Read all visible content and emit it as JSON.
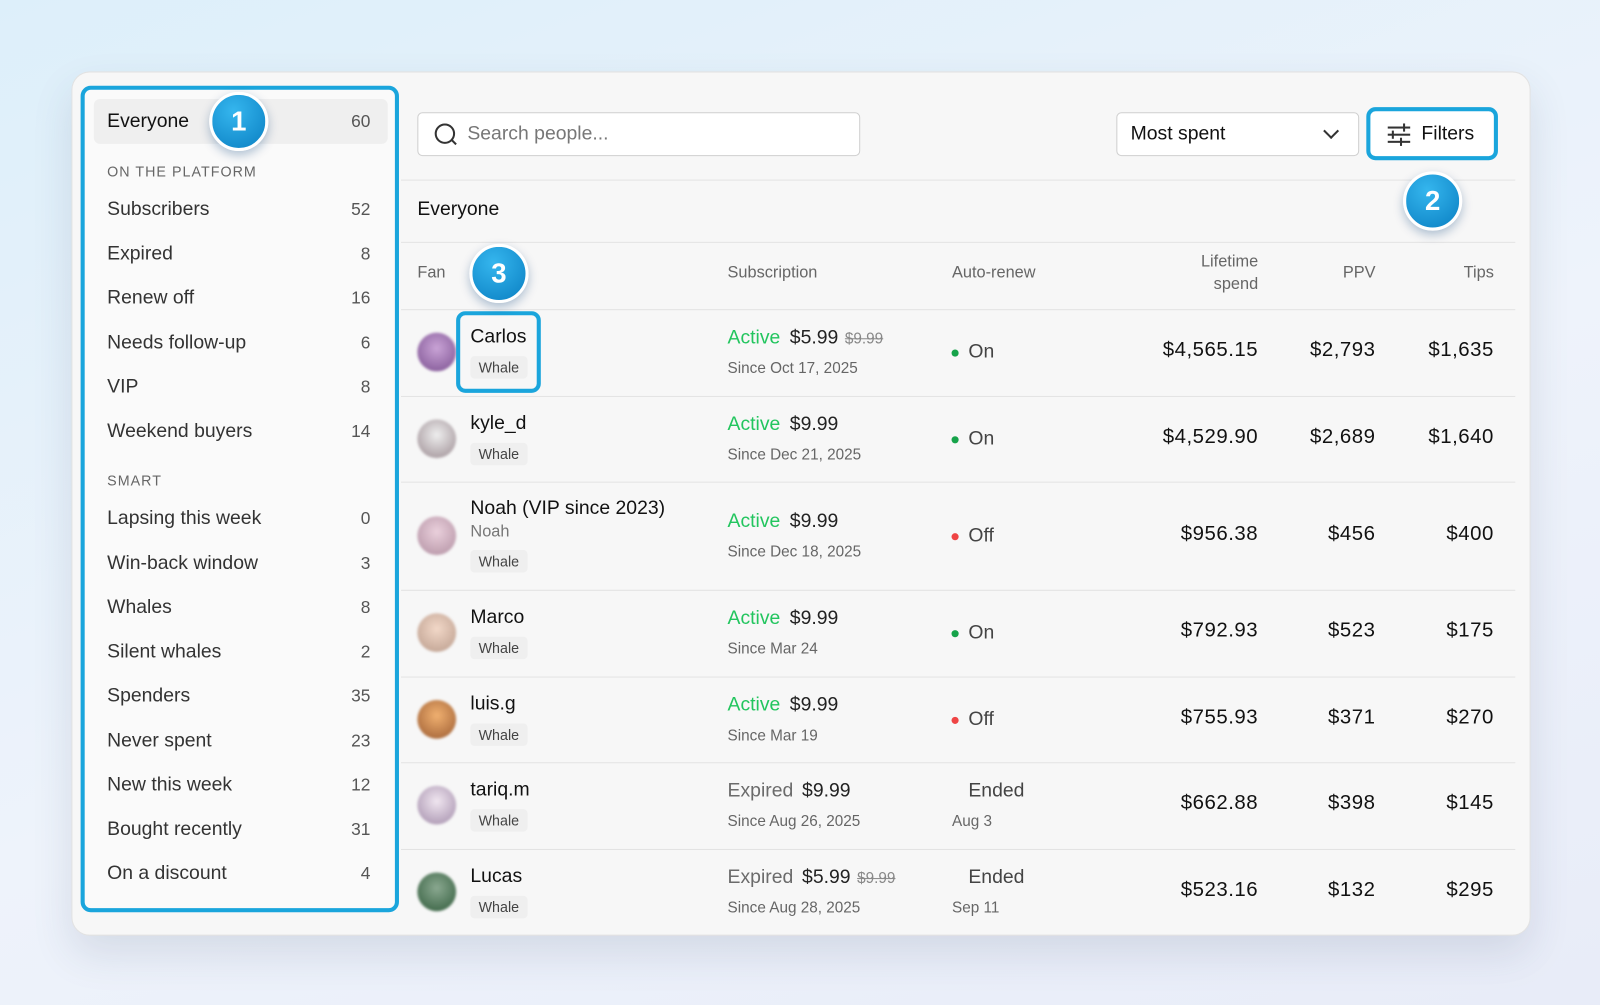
{
  "callouts": [
    "1",
    "2",
    "3"
  ],
  "sidebar": {
    "everyone": {
      "label": "Everyone",
      "count": "60"
    },
    "groups": [
      {
        "heading": "ON THE PLATFORM",
        "items": [
          {
            "label": "Subscribers",
            "count": "52"
          },
          {
            "label": "Expired",
            "count": "8"
          },
          {
            "label": "Renew off",
            "count": "16"
          },
          {
            "label": "Needs follow-up",
            "count": "6"
          },
          {
            "label": "VIP",
            "count": "8"
          },
          {
            "label": "Weekend buyers",
            "count": "14"
          }
        ]
      },
      {
        "heading": "SMART",
        "items": [
          {
            "label": "Lapsing this week",
            "count": "0"
          },
          {
            "label": "Win-back window",
            "count": "3"
          },
          {
            "label": "Whales",
            "count": "8"
          },
          {
            "label": "Silent whales",
            "count": "2"
          },
          {
            "label": "Spenders",
            "count": "35"
          },
          {
            "label": "Never spent",
            "count": "23"
          },
          {
            "label": "New this week",
            "count": "12"
          },
          {
            "label": "Bought recently",
            "count": "31"
          },
          {
            "label": "On a discount",
            "count": "4"
          }
        ]
      }
    ]
  },
  "toolbar": {
    "search_placeholder": "Search people...",
    "sort": "Most spent",
    "filters": "Filters"
  },
  "table": {
    "title": "Everyone",
    "columns": [
      "Fan",
      "Subscription",
      "Auto-renew",
      "Lifetime spend",
      "PPV",
      "Tips"
    ],
    "rows": [
      {
        "name": "Carlos",
        "tag": "Whale",
        "status": "Active",
        "status_color": "#22c55e",
        "price": "$5.99",
        "old_price": "$9.99",
        "since": "Since Oct 17, 2025",
        "renew": "On",
        "renew_dot": "#16a34a",
        "lifetime": "$4,565.15",
        "ppv": "$2,793",
        "tips": "$1,635"
      },
      {
        "name": "kyle_d",
        "tag": "Whale",
        "status": "Active",
        "status_color": "#22c55e",
        "price": "$9.99",
        "since": "Since Dec 21, 2025",
        "renew": "On",
        "renew_dot": "#16a34a",
        "lifetime": "$4,529.90",
        "ppv": "$2,689",
        "tips": "$1,640"
      },
      {
        "name": "Noah (VIP since 2023)",
        "alias": "Noah",
        "tag": "Whale",
        "status": "Active",
        "status_color": "#22c55e",
        "price": "$9.99",
        "since": "Since Dec 18, 2025",
        "renew": "Off",
        "renew_dot": "#ef4444",
        "lifetime": "$956.38",
        "ppv": "$456",
        "tips": "$400"
      },
      {
        "name": "Marco",
        "tag": "Whale",
        "status": "Active",
        "status_color": "#22c55e",
        "price": "$9.99",
        "since": "Since Mar 24",
        "renew": "On",
        "renew_dot": "#16a34a",
        "lifetime": "$792.93",
        "ppv": "$523",
        "tips": "$175"
      },
      {
        "name": "luis.g",
        "tag": "Whale",
        "status": "Active",
        "status_color": "#22c55e",
        "price": "$9.99",
        "since": "Since Mar 19",
        "renew": "Off",
        "renew_dot": "#ef4444",
        "lifetime": "$755.93",
        "ppv": "$371",
        "tips": "$270"
      },
      {
        "name": "tariq.m",
        "tag": "Whale",
        "status": "Expired",
        "status_color": "#6b6b6b",
        "price": "$9.99",
        "since": "Since Aug 26, 2025",
        "renew": "Ended",
        "renew_note": "Aug 3",
        "lifetime": "$662.88",
        "ppv": "$398",
        "tips": "$145"
      },
      {
        "name": "Lucas",
        "tag": "Whale",
        "status": "Expired",
        "status_color": "#6b6b6b",
        "price": "$5.99",
        "old_price": "$9.99",
        "since": "Since Aug 28, 2025",
        "renew": "Ended",
        "renew_note": "Sep 11",
        "lifetime": "$523.16",
        "ppv": "$132",
        "tips": "$295"
      }
    ]
  }
}
